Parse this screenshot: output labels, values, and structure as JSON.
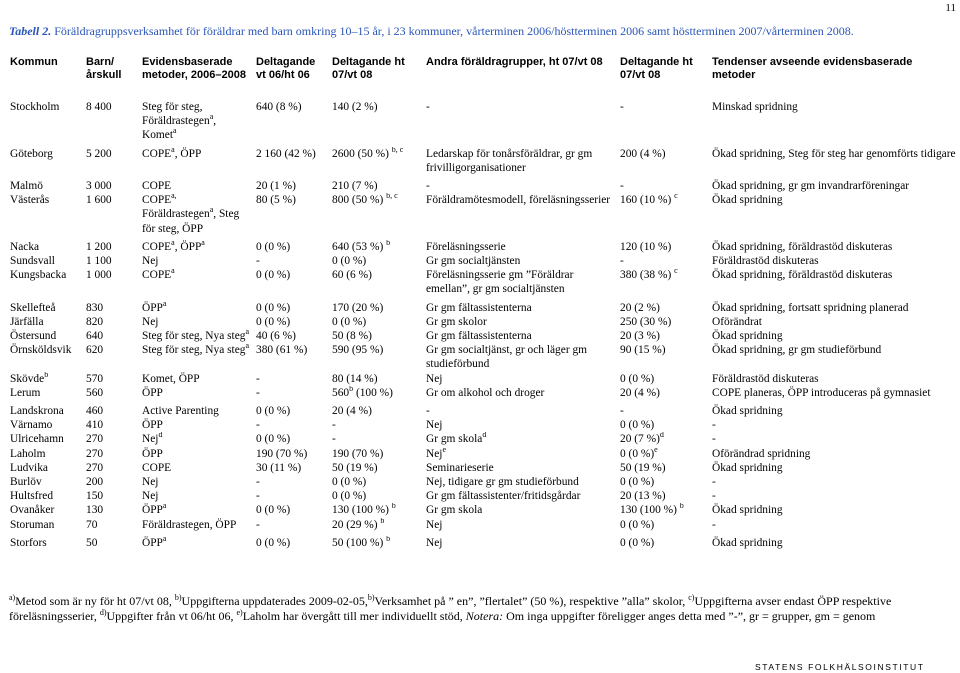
{
  "page_number": "11",
  "caption": {
    "label": "Tabell 2.",
    "text": "Föräldragruppsverksamhet för föräldrar med barn omkring 10–15 år, i 23 kommuner, vårterminen 2006/höstterminen 2006 samt höstterminen 2007/vårterminen 2008."
  },
  "table": {
    "headers": [
      "Kommun",
      "Barn/ årskull",
      "Evidensbaserade metoder, 2006–2008",
      "Deltagande vt 06/ht 06",
      "Deltagande ht 07/vt 08",
      "Andra föräldragrupper, ht 07/vt 08",
      "Deltagande ht 07/vt 08",
      "Tendenser avseende evidensbaserade metoder"
    ],
    "rows": [
      {
        "c0": "Stockholm",
        "c1": "8 400",
        "c2": "Steg för steg, Föräldrastegen<sup>a</sup>, Komet<sup>a</sup>",
        "c3": "640 (8 %)",
        "c4": "140 (2 %)",
        "c5": "-",
        "c6": "-",
        "c7": "Minskad spridning"
      },
      {
        "c0": "Göteborg",
        "c1": "5 200",
        "c2": "COPE<sup>a</sup>, ÖPP",
        "c3": "2 160 (42 %)",
        "c4": "2600 (50 %) <sup>b, c</sup>",
        "c5": "Ledarskap för tonårsföräldrar, gr gm frivilligorganisationer",
        "c6": "200 (4 %)",
        "c7": "Ökad spridning, Steg för steg har genomförts tidigare"
      },
      {
        "c0": "Malmö",
        "c1": "3 000",
        "c2": "COPE",
        "c3": "20 (1 %)",
        "c4": "210 (7 %)",
        "c5": "-",
        "c6": "-",
        "c7": "Ökad spridning, gr gm invandrarföreningar"
      },
      {
        "c0": "Västerås",
        "c1": "1 600",
        "c2": "COPE<sup>a,</sup> Föräldrastegen<sup>a</sup>, Steg för steg, ÖPP",
        "c3": "80 (5 %)",
        "c4": "800 (50 %) <sup>b, c</sup>",
        "c5": "Föräldramötesmodell, föreläsningsserier",
        "c6": "160 (10 %) <sup>c</sup>",
        "c7": "Ökad spridning"
      },
      {
        "c0": "Nacka",
        "c1": "1 200",
        "c2": "COPE<sup>a</sup>, ÖPP<sup>a</sup>",
        "c3": "0 (0 %)",
        "c4": "640 (53 %) <sup>b</sup>",
        "c5": "Föreläsningsserie",
        "c6": "120 (10 %)",
        "c7": "Ökad spridning, föräldrastöd diskuteras"
      },
      {
        "c0": "Sundsvall",
        "c1": "1 100",
        "c2": "Nej",
        "c3": "-",
        "c4": "0 (0 %)",
        "c5": "Gr gm socialtjänsten",
        "c6": "-",
        "c7": "Föräldrastöd diskuteras"
      },
      {
        "c0": "Kungsbacka",
        "c1": "1 000",
        "c2": "COPE<sup>a</sup>",
        "c3": "0 (0 %)",
        "c4": "60 (6 %)",
        "c5": "Föreläsningsserie gm ”Föräldrar emellan”, gr gm socialtjänsten",
        "c6": "380 (38 %) <sup>c</sup>",
        "c7": "Ökad spridning, föräldrastöd diskuteras"
      },
      {
        "c0": "Skellefteå",
        "c1": "830",
        "c2": "ÖPP<sup>a</sup>",
        "c3": "0 (0 %)",
        "c4": "170 (20 %)",
        "c5": "Gr gm fältassistenterna",
        "c6": "20 (2 %)",
        "c7": "Ökad spridning, fortsatt spridning planerad"
      },
      {
        "c0": "Järfälla",
        "c1": "820",
        "c2": "Nej",
        "c3": "0 (0 %)",
        "c4": "0 (0 %)",
        "c5": "Gr gm skolor",
        "c6": "250 (30 %)",
        "c7": "Oförändrat"
      },
      {
        "c0": "Östersund",
        "c1": "640",
        "c2": "Steg för steg, Nya steg<sup>a</sup>",
        "c3": "40 (6 %)",
        "c4": "50 (8 %)",
        "c5": "Gr gm fältassistenterna",
        "c6": "20 (3 %)",
        "c7": "Ökad spridning"
      },
      {
        "c0": "Örnsköldsvik",
        "c1": "620",
        "c2": "Steg för steg, Nya steg<sup>a</sup>",
        "c3": "380 (61 %)",
        "c4": "590 (95 %)",
        "c5": "Gr gm socialtjänst, gr och läger gm studieförbund",
        "c6": "90 (15 %)",
        "c7": "Ökad spridning, gr gm studieförbund"
      },
      {
        "c0": "Skövde<sup>b</sup>",
        "c1": "570",
        "c2": "Komet, ÖPP",
        "c3": "-",
        "c4": "80 (14 %)",
        "c5": "Nej",
        "c6": "0 (0 %)",
        "c7": "Föräldrastöd diskuteras"
      },
      {
        "c0": "Lerum",
        "c1": "560",
        "c2": "ÖPP",
        "c3": "-",
        "c4": "560<sup>b</sup> (100 %)",
        "c5": "Gr om alkohol och droger",
        "c6": "20 (4 %)",
        "c7": "COPE planeras, ÖPP introduceras på gymnasiet"
      },
      {
        "c0": "Landskrona",
        "c1": "460",
        "c2": "Active Parenting",
        "c3": "0 (0 %)",
        "c4": "20 (4 %)",
        "c5": "-",
        "c6": "-",
        "c7": "Ökad spridning"
      },
      {
        "c0": "Värnamo",
        "c1": "410",
        "c2": "ÖPP",
        "c3": "-",
        "c4": "-",
        "c5": "Nej",
        "c6": "0 (0 %)",
        "c7": "-"
      },
      {
        "c0": "Ulricehamn",
        "c1": "270",
        "c2": "Nej<sup>d</sup>",
        "c3": "0 (0 %)",
        "c4": "-",
        "c5": "Gr gm skola<sup>d</sup>",
        "c6": "20 (7 %)<sup>d</sup>",
        "c7": "-"
      },
      {
        "c0": "Laholm",
        "c1": "270",
        "c2": "ÖPP",
        "c3": "190 (70 %)",
        "c4": "190 (70 %)",
        "c5": "Nej<sup>e</sup>",
        "c6": "0 (0 %)<sup>e</sup>",
        "c7": "Oförändrad spridning"
      },
      {
        "c0": "Ludvika",
        "c1": "270",
        "c2": "COPE",
        "c3": "30 (11 %)",
        "c4": "50 (19 %)",
        "c5": "Seminarieserie",
        "c6": "50 (19 %)",
        "c7": "Ökad spridning"
      },
      {
        "c0": "Burlöv",
        "c1": "200",
        "c2": "Nej",
        "c3": "-",
        "c4": "0 (0 %)",
        "c5": "Nej, tidigare gr gm studieförbund",
        "c6": "0 (0 %)",
        "c7": "-"
      },
      {
        "c0": "Hultsfred",
        "c1": "150",
        "c2": "Nej",
        "c3": "-",
        "c4": "0 (0 %)",
        "c5": "Gr gm fältassistenter/fritidsgårdar",
        "c6": "20 (13 %)",
        "c7": "-"
      },
      {
        "c0": "Ovanåker",
        "c1": "130",
        "c2": "ÖPP<sup>a</sup>",
        "c3": "0 (0 %)",
        "c4": "130 (100 %) <sup>b</sup>",
        "c5": "Gr gm skola",
        "c6": "130 (100 %) <sup>b</sup>",
        "c7": "Ökad spridning"
      },
      {
        "c0": "Storuman",
        "c1": "70",
        "c2": "Föräldrastegen, ÖPP",
        "c3": "-",
        "c4": "20 (29 %) <sup>b</sup>",
        "c5": "Nej",
        "c6": "0 (0 %)",
        "c7": "-"
      },
      {
        "c0": "Storfors",
        "c1": "50",
        "c2": "ÖPP<sup>a</sup>",
        "c3": "0 (0 %)",
        "c4": "50 (100 %) <sup>b</sup>",
        "c5": "Nej",
        "c6": "0 (0 %)",
        "c7": "Ökad spridning"
      }
    ]
  },
  "notes": "<sup>a)</sup>Metod som är ny för ht 07/vt 08, <sup>b)</sup>Uppgifterna uppdaterades 2009-02-05,<sup>b)</sup>Verksamhet på ” en”, ”flertalet” (50 %), respektive ”alla” skolor, <sup>c)</sup>Uppgifterna avser endast ÖPP respektive föreläsningsserier, <sup>d)</sup>Uppgifter från vt 06/ht 06, <sup>e)</sup>Laholm har övergått till mer individuellt stöd, <i>Notera:</i> Om inga uppgifter föreligger anges detta med ”-”, gr = grupper, gm = genom",
  "footer": "STATENS FOLKHÄLSOINSTITUT"
}
